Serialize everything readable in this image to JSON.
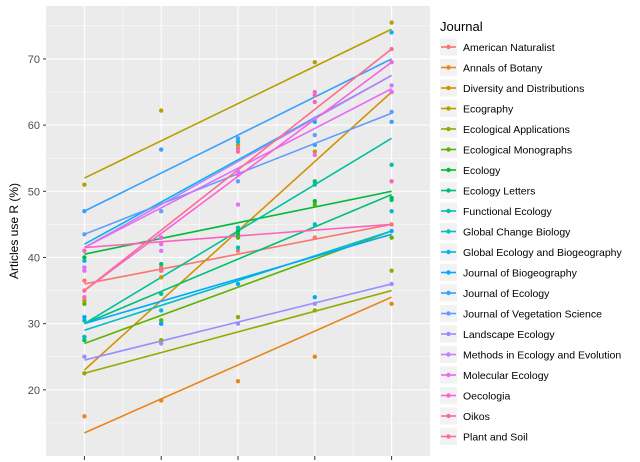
{
  "chart_data": {
    "type": "scatter",
    "ylabel": "Articles use R (%)",
    "xlabel": "",
    "legend_title": "Journal",
    "legend_position": "right",
    "grid": true,
    "ylim": [
      10,
      78
    ],
    "xlim": [
      0.5,
      5.5
    ],
    "yticks": [
      20,
      30,
      40,
      50,
      60,
      70
    ],
    "x": [
      1,
      2,
      3,
      4,
      5
    ],
    "series": [
      {
        "name": "American Naturalist",
        "color": "#F8766D",
        "values": [
          36.5,
          38.5,
          41.0,
          43.0,
          45.0
        ],
        "fit": [
          36,
          45
        ]
      },
      {
        "name": "Annals of Botany",
        "color": "#E7861B",
        "values": [
          16.0,
          18.4,
          21.3,
          25.0,
          33.0
        ],
        "fit": [
          13.5,
          34
        ]
      },
      {
        "name": "Diversity and Distributions",
        "color": "#D39200",
        "values": [
          33.5,
          37.0,
          44.0,
          56.0,
          65.0
        ],
        "fit": [
          23,
          65
        ]
      },
      {
        "name": "Ecography",
        "color": "#B79F00",
        "values": [
          51.0,
          62.2,
          57.0,
          69.5,
          75.5
        ],
        "fit": [
          52,
          74.5
        ]
      },
      {
        "name": "Ecological Applications",
        "color": "#93AA00",
        "values": [
          22.5,
          27.5,
          31.0,
          32.0,
          38.0
        ],
        "fit": [
          22.5,
          35
        ]
      },
      {
        "name": "Ecological Monographs",
        "color": "#5EB300",
        "values": [
          33.0,
          30.5,
          43.0,
          48.0,
          43.0
        ],
        "fit": [
          27,
          44
        ]
      },
      {
        "name": "Ecology",
        "color": "#00BA38",
        "values": [
          40.0,
          43.0,
          44.0,
          48.5,
          49.0
        ],
        "fit": [
          40.5,
          50
        ]
      },
      {
        "name": "Ecology Letters",
        "color": "#00BF74",
        "values": [
          27.5,
          39.0,
          43.5,
          51.5,
          48.7
        ],
        "fit": [
          30,
          49.5
        ]
      },
      {
        "name": "Functional Ecology",
        "color": "#00C19F",
        "values": [
          30.5,
          34.5,
          44.5,
          51.0,
          54.0
        ],
        "fit": [
          30,
          58
        ]
      },
      {
        "name": "Global Change Biology",
        "color": "#00BFC4",
        "values": [
          28.0,
          30.0,
          41.5,
          45.0,
          47.0
        ],
        "fit": [
          29,
          44
        ]
      },
      {
        "name": "Global Ecology and Biogeography",
        "color": "#00B8E7",
        "values": [
          39.5,
          32.0,
          57.5,
          60.5,
          74.0
        ],
        "fit": [
          42,
          67.5
        ]
      },
      {
        "name": "Journal of Biogeography",
        "color": "#00A9FF",
        "values": [
          31.0,
          30.0,
          36.0,
          34.0,
          44.0
        ],
        "fit": [
          30,
          43.5
        ]
      },
      {
        "name": "Journal of Ecology",
        "color": "#35A2FF",
        "values": [
          47.0,
          56.3,
          58.0,
          57.0,
          60.5
        ],
        "fit": [
          47,
          70
        ]
      },
      {
        "name": "Journal of Vegetation Science",
        "color": "#619CFF",
        "values": [
          43.5,
          47.0,
          51.5,
          58.5,
          62.0
        ],
        "fit": [
          43.5,
          61.8
        ]
      },
      {
        "name": "Landscape Ecology",
        "color": "#9590FF",
        "values": [
          25.0,
          27.0,
          30.0,
          33.0,
          36.0
        ],
        "fit": [
          24.5,
          36
        ]
      },
      {
        "name": "Methods in Ecology and Evolution",
        "color": "#C77CFF",
        "values": [
          38.5,
          41.0,
          53.0,
          61.0,
          66.0
        ],
        "fit": [
          41.5,
          67.5
        ]
      },
      {
        "name": "Molecular Ecology",
        "color": "#E76BF3",
        "values": [
          38.0,
          42.0,
          48.0,
          55.5,
          65.0
        ],
        "fit": [
          41.5,
          65.5
        ]
      },
      {
        "name": "Oecologia",
        "color": "#FA62DB",
        "values": [
          34.0,
          43.0,
          52.5,
          65.0,
          69.5
        ],
        "fit": [
          35,
          69.5
        ]
      },
      {
        "name": "Oikos",
        "color": "#FF62BC",
        "values": [
          41.0,
          38.0,
          56.5,
          63.5,
          51.5
        ],
        "fit": [
          41.5,
          45
        ]
      },
      {
        "name": "Plant and Soil",
        "color": "#FF6C91",
        "values": [
          35.0,
          38.0,
          56.0,
          64.5,
          71.5
        ],
        "fit": [
          35,
          71.5
        ]
      }
    ]
  }
}
